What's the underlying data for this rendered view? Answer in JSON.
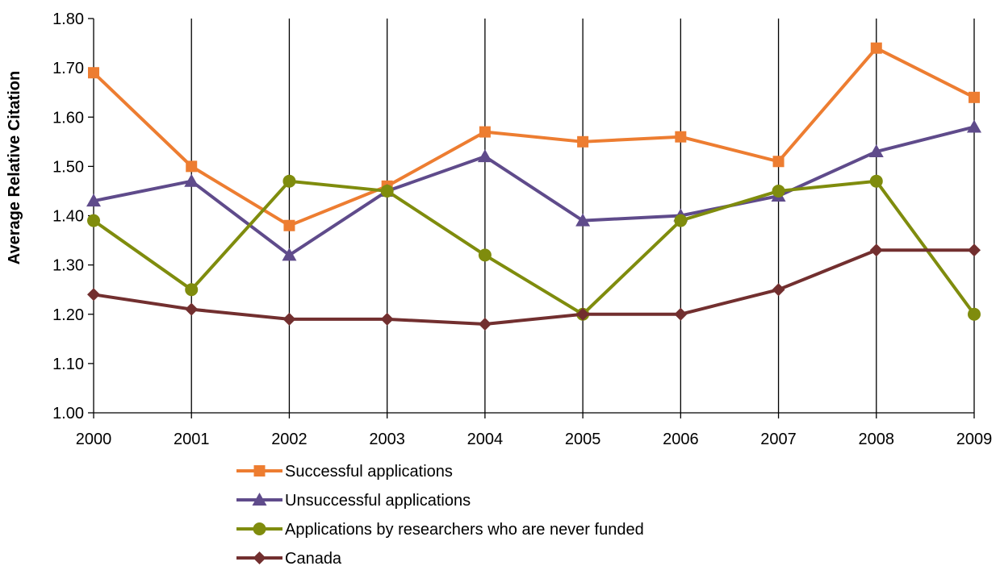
{
  "chart_data": {
    "type": "line",
    "title": "",
    "xlabel": "",
    "ylabel": "Average Relative Citation",
    "x": [
      "2000",
      "2001",
      "2002",
      "2003",
      "2004",
      "2005",
      "2006",
      "2007",
      "2008",
      "2009"
    ],
    "ylim": [
      1.0,
      1.8
    ],
    "yticks": [
      "1.00",
      "1.10",
      "1.20",
      "1.30",
      "1.40",
      "1.50",
      "1.60",
      "1.70",
      "1.80"
    ],
    "grid": "vertical",
    "legend_position": "bottom",
    "series": [
      {
        "name": "Successful applications",
        "marker": "square",
        "color": "#ED7D31",
        "values": [
          1.69,
          1.5,
          1.38,
          1.46,
          1.57,
          1.55,
          1.56,
          1.51,
          1.74,
          1.64
        ]
      },
      {
        "name": "Unsuccessful applications",
        "marker": "triangle",
        "color": "#5F4B8B",
        "values": [
          1.43,
          1.47,
          1.32,
          1.45,
          1.52,
          1.39,
          1.4,
          1.44,
          1.53,
          1.58
        ]
      },
      {
        "name": "Applications by researchers who are never funded",
        "marker": "circle",
        "color": "#7F8C0D",
        "values": [
          1.39,
          1.25,
          1.47,
          1.45,
          1.32,
          1.2,
          1.39,
          1.45,
          1.47,
          1.2
        ]
      },
      {
        "name": "Canada",
        "marker": "diamond",
        "color": "#722F2F",
        "values": [
          1.24,
          1.21,
          1.19,
          1.19,
          1.18,
          1.2,
          1.2,
          1.25,
          1.33,
          1.33
        ]
      }
    ]
  }
}
